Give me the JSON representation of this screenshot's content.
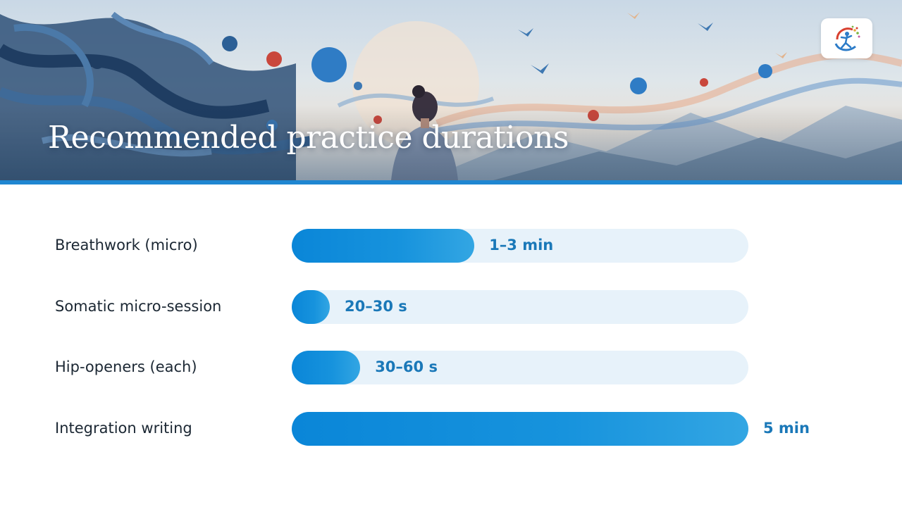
{
  "slide": {
    "title": "Recommended practice durations"
  },
  "logo": {
    "icon": "leaping-figure-logo-icon"
  },
  "colors": {
    "accent": "#1f86d1",
    "bar": "#0a86d8",
    "track": "#e7f2fa",
    "value_text": "#1a78b8",
    "label_text": "#1b2733"
  },
  "chart_data": {
    "type": "bar",
    "orientation": "horizontal",
    "categories": [
      "Breathwork (micro)",
      "Somatic micro-session",
      "Hip-openers (each)",
      "Integration writing"
    ],
    "values": [
      0.4,
      0.08,
      0.15,
      1.0
    ],
    "value_labels": [
      "1–3 min",
      "20–30 s",
      "30–60 s",
      "5 min"
    ],
    "value_scale": "fraction of longest duration (5 min)",
    "grid": false,
    "legend": "none"
  }
}
